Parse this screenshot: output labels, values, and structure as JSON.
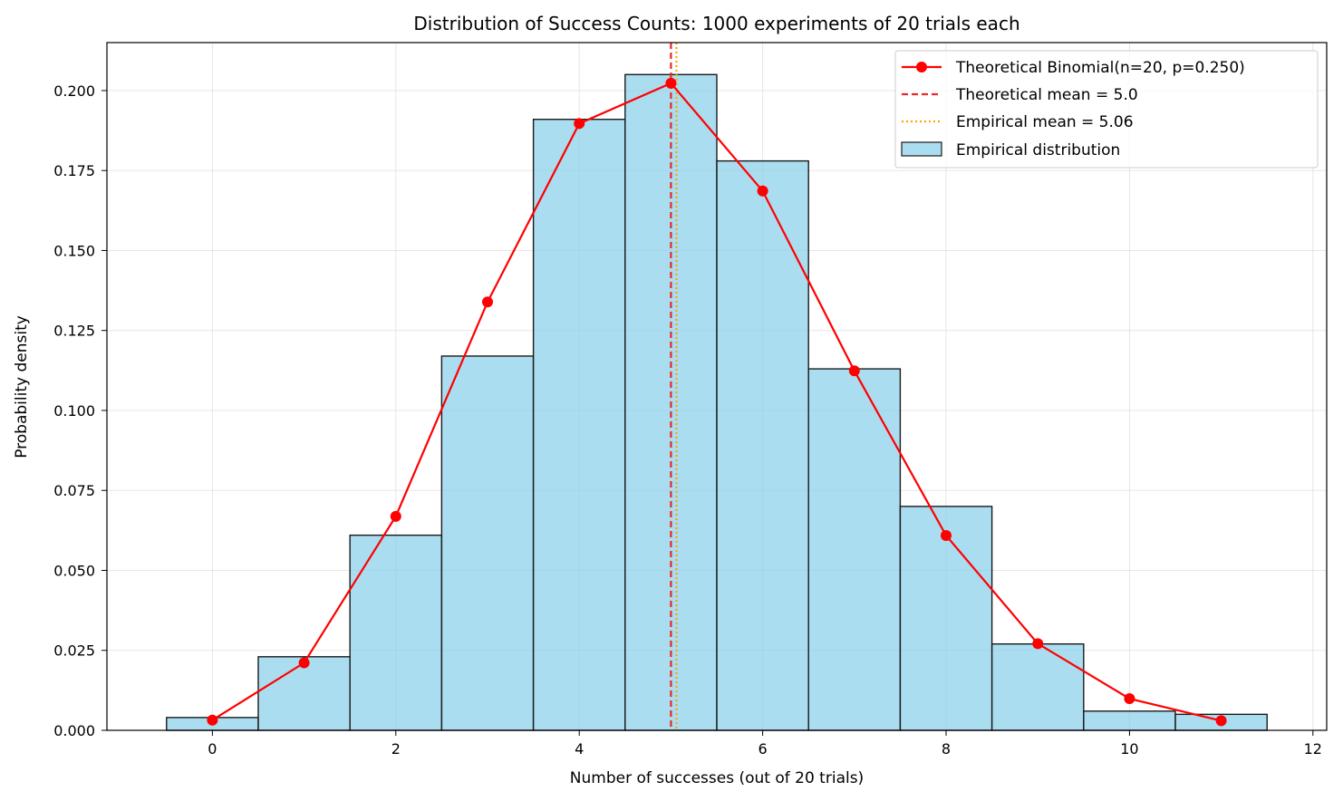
{
  "chart_data": {
    "type": "bar",
    "title": "Distribution of Success Counts: 1000 experiments of 20 trials each",
    "xlabel": "Number of successes (out of 20 trials)",
    "ylabel": "Probability density",
    "xlim": [
      -1.15,
      12.15
    ],
    "ylim": [
      0,
      0.215
    ],
    "xticks": [
      0,
      2,
      4,
      6,
      8,
      10,
      12
    ],
    "xtick_labels": [
      "0",
      "2",
      "4",
      "6",
      "8",
      "10",
      "12"
    ],
    "yticks": [
      0,
      0.025,
      0.05,
      0.075,
      0.1,
      0.125,
      0.15,
      0.175,
      0.2
    ],
    "ytick_labels": [
      "0.000",
      "0.025",
      "0.050",
      "0.075",
      "0.100",
      "0.125",
      "0.150",
      "0.175",
      "0.200"
    ],
    "grid": true,
    "legend_position": "top-right",
    "histogram": {
      "name": "Empirical distribution",
      "bin_width": 1,
      "x": [
        0,
        1,
        2,
        3,
        4,
        5,
        6,
        7,
        8,
        9,
        10,
        11
      ],
      "values": [
        0.004,
        0.023,
        0.061,
        0.117,
        0.191,
        0.205,
        0.178,
        0.113,
        0.07,
        0.027,
        0.006,
        0.005
      ],
      "color": "#87ceeb",
      "edge_color": "#1a1a1a"
    },
    "series": [
      {
        "name": "Theoretical Binomial(n=20, p=0.250)",
        "type": "line",
        "x": [
          0,
          1,
          2,
          3,
          4,
          5,
          6,
          7,
          8,
          9,
          10,
          11
        ],
        "values": [
          0.0032,
          0.0211,
          0.0669,
          0.1339,
          0.1897,
          0.2023,
          0.1686,
          0.1124,
          0.0609,
          0.0271,
          0.0099,
          0.003
        ],
        "color": "#ff0000"
      }
    ],
    "vlines": [
      {
        "name": "Theoretical mean = 5.0",
        "x": 5.0,
        "color": "#e8282a",
        "style": "dashed"
      },
      {
        "name": "Empirical mean = 5.06",
        "x": 5.06,
        "color": "#ffa500",
        "style": "dotted"
      }
    ]
  }
}
